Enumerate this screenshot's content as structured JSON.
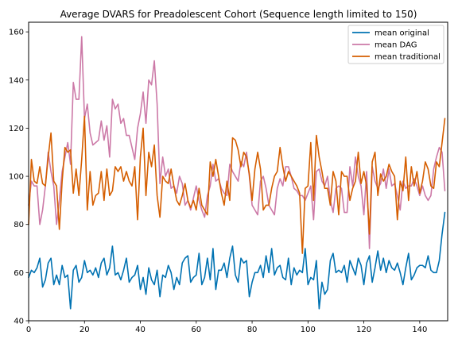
{
  "chart_data": {
    "type": "line",
    "title": "Average DVARS for Preadolescent Cohort (Sequence length limited to 150)",
    "xlabel": "",
    "ylabel": "",
    "xlim": [
      0,
      150
    ],
    "ylim": [
      40,
      164
    ],
    "xticks": [
      0,
      20,
      40,
      60,
      80,
      100,
      120,
      140
    ],
    "yticks": [
      40,
      60,
      80,
      100,
      120,
      140,
      160
    ],
    "grid": false,
    "legend_position": "top-right",
    "series": [
      {
        "name": "mean original",
        "color": "#0072b2",
        "values": [
          58,
          61,
          60,
          62,
          66,
          54,
          57,
          64,
          66,
          55,
          59,
          55,
          63,
          58,
          59,
          45,
          61,
          63,
          56,
          58,
          65,
          60,
          61,
          59,
          62,
          58,
          64,
          66,
          59,
          62,
          71,
          59,
          60,
          57,
          61,
          66,
          56,
          58,
          59,
          63,
          53,
          58,
          51,
          62,
          57,
          55,
          61,
          50,
          59,
          58,
          63,
          60,
          53,
          58,
          55,
          64,
          66,
          67,
          56,
          58,
          59,
          68,
          55,
          58,
          66,
          57,
          70,
          53,
          61,
          61,
          64,
          58,
          66,
          71,
          59,
          56,
          66,
          64,
          65,
          50,
          56,
          60,
          60,
          63,
          58,
          67,
          60,
          70,
          59,
          62,
          63,
          58,
          57,
          66,
          55,
          62,
          59,
          61,
          60,
          70,
          55,
          58,
          57,
          65,
          45,
          56,
          51,
          53,
          65,
          68,
          60,
          61,
          60,
          63,
          56,
          65,
          62,
          59,
          66,
          63,
          55,
          64,
          67,
          56,
          62,
          69,
          61,
          66,
          60,
          65,
          62,
          61,
          64,
          60,
          55,
          62,
          68,
          57,
          59,
          62,
          63,
          63,
          62,
          67,
          61,
          60,
          60,
          65,
          76,
          85
        ]
      },
      {
        "name": "mean DAG",
        "color": "#cc79a7",
        "values": [
          88,
          98,
          96,
          96,
          80,
          86,
          96,
          110,
          102,
          96,
          80,
          90,
          102,
          108,
          114,
          105,
          139,
          132,
          132,
          158,
          124,
          130,
          118,
          113,
          114,
          115,
          123,
          115,
          121,
          108,
          132,
          128,
          130,
          122,
          124,
          117,
          117,
          112,
          107,
          120,
          126,
          135,
          122,
          140,
          138,
          148,
          130,
          97,
          108,
          100,
          103,
          95,
          96,
          93,
          100,
          97,
          88,
          90,
          86,
          91,
          96,
          90,
          86,
          83,
          92,
          96,
          105,
          98,
          99,
          95,
          93,
          92,
          105,
          102,
          100,
          98,
          106,
          104,
          110,
          100,
          88,
          86,
          84,
          98,
          100,
          95,
          88,
          86,
          84,
          95,
          99,
          96,
          104,
          104,
          100,
          95,
          94,
          92,
          92,
          90,
          93,
          96,
          82,
          102,
          103,
          98,
          96,
          100,
          90,
          85,
          95,
          96,
          95,
          85,
          85,
          104,
          96,
          108,
          100,
          96,
          84,
          102,
          70,
          104,
          98,
          95,
          97,
          103,
          95,
          103,
          96,
          97,
          92,
          86,
          98,
          95,
          96,
          96,
          99,
          96,
          92,
          96,
          92,
          90,
          92,
          103,
          108,
          112,
          110,
          94
        ]
      },
      {
        "name": "mean traditional",
        "color": "#d55e00",
        "values": [
          80,
          107,
          98,
          97,
          104,
          97,
          96,
          108,
          118,
          98,
          96,
          78,
          98,
          112,
          110,
          111,
          93,
          103,
          92,
          107,
          125,
          86,
          102,
          88,
          92,
          93,
          102,
          90,
          103,
          92,
          94,
          104,
          102,
          104,
          98,
          102,
          98,
          96,
          104,
          82,
          108,
          120,
          92,
          110,
          104,
          113,
          92,
          83,
          100,
          98,
          97,
          103,
          96,
          90,
          88,
          92,
          97,
          90,
          87,
          90,
          86,
          95,
          88,
          86,
          84,
          106,
          100,
          107,
          100,
          93,
          88,
          98,
          90,
          116,
          115,
          111,
          104,
          110,
          108,
          101,
          90,
          103,
          110,
          103,
          86,
          88,
          88,
          95,
          100,
          102,
          112,
          104,
          98,
          102,
          100,
          98,
          96,
          93,
          68,
          95,
          96,
          114,
          90,
          117,
          108,
          102,
          95,
          95,
          88,
          102,
          98,
          84,
          102,
          100,
          100,
          90,
          95,
          98,
          110,
          97,
          102,
          96,
          76,
          106,
          110,
          92,
          101,
          98,
          100,
          105,
          102,
          100,
          82,
          98,
          94,
          108,
          90,
          104,
          96,
          102,
          93,
          98,
          106,
          103,
          96,
          95,
          106,
          104,
          114,
          124
        ]
      }
    ]
  }
}
